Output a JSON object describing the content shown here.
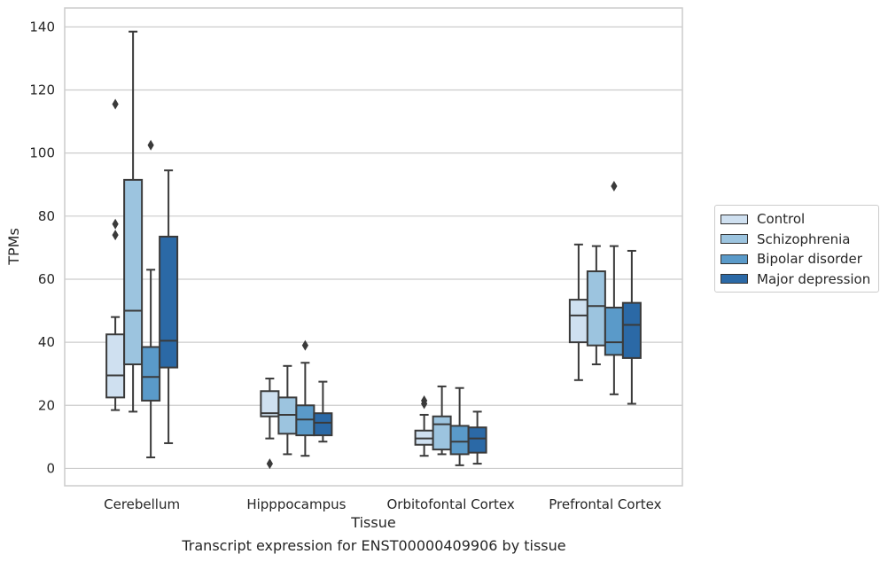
{
  "chart_data": {
    "type": "box",
    "xlabel": "Tissue",
    "ylabel": "TPMs",
    "ylim": [
      -5.5,
      146
    ],
    "yticks": [
      0,
      20,
      40,
      60,
      80,
      100,
      120,
      140
    ],
    "grid": "horizontal",
    "legend_position": "right",
    "categories": [
      "Cerebellum",
      "Hipppocampus",
      "Orbitofontal Cortex",
      "Prefrontal Cortex"
    ],
    "series": [
      {
        "name": "Control",
        "color": "#cfe0f0",
        "boxes": [
          {
            "whisker_low": 18.5,
            "q1": 22.5,
            "median": 29.5,
            "q3": 42.5,
            "whisker_high": 48,
            "outliers": [
              115.5,
              77.5,
              74
            ]
          },
          {
            "whisker_low": 9.5,
            "q1": 16.5,
            "median": 17.5,
            "q3": 24.5,
            "whisker_high": 28.5,
            "outliers": [
              1.5
            ]
          },
          {
            "whisker_low": 4,
            "q1": 7.5,
            "median": 9.5,
            "q3": 12,
            "whisker_high": 17,
            "outliers": [
              20.5,
              21.5
            ]
          },
          {
            "whisker_low": 28,
            "q1": 40,
            "median": 48.5,
            "q3": 53.5,
            "whisker_high": 71,
            "outliers": []
          }
        ]
      },
      {
        "name": "Schizophrenia",
        "color": "#9cc4df",
        "boxes": [
          {
            "whisker_low": 18,
            "q1": 33,
            "median": 50,
            "q3": 91.5,
            "whisker_high": 138.5,
            "outliers": []
          },
          {
            "whisker_low": 4.5,
            "q1": 11,
            "median": 17,
            "q3": 22.5,
            "whisker_high": 32.5,
            "outliers": []
          },
          {
            "whisker_low": 4.5,
            "q1": 6,
            "median": 14,
            "q3": 16.5,
            "whisker_high": 26,
            "outliers": []
          },
          {
            "whisker_low": 33,
            "q1": 39,
            "median": 51.5,
            "q3": 62.5,
            "whisker_high": 70.5,
            "outliers": []
          }
        ]
      },
      {
        "name": "Bipolar disorder",
        "color": "#5a9ac9",
        "boxes": [
          {
            "whisker_low": 3.5,
            "q1": 21.5,
            "median": 29,
            "q3": 38.5,
            "whisker_high": 63,
            "outliers": [
              102.5
            ]
          },
          {
            "whisker_low": 4,
            "q1": 10.5,
            "median": 15.5,
            "q3": 20,
            "whisker_high": 33.5,
            "outliers": [
              39
            ]
          },
          {
            "whisker_low": 1,
            "q1": 4.5,
            "median": 8.5,
            "q3": 13.5,
            "whisker_high": 25.5,
            "outliers": []
          },
          {
            "whisker_low": 23.5,
            "q1": 36,
            "median": 40,
            "q3": 51,
            "whisker_high": 70.5,
            "outliers": [
              89.5
            ]
          }
        ]
      },
      {
        "name": "Major depression",
        "color": "#2b69a6",
        "boxes": [
          {
            "whisker_low": 8,
            "q1": 32,
            "median": 40.5,
            "q3": 73.5,
            "whisker_high": 94.5,
            "outliers": []
          },
          {
            "whisker_low": 8.5,
            "q1": 10.5,
            "median": 14.5,
            "q3": 17.5,
            "whisker_high": 27.5,
            "outliers": []
          },
          {
            "whisker_low": 1.5,
            "q1": 5,
            "median": 9.5,
            "q3": 13,
            "whisker_high": 18,
            "outliers": []
          },
          {
            "whisker_low": 20.5,
            "q1": 35,
            "median": 45.5,
            "q3": 52.5,
            "whisker_high": 69,
            "outliers": []
          }
        ]
      }
    ]
  },
  "caption": "Transcript expression for ENST00000409906 by tissue"
}
